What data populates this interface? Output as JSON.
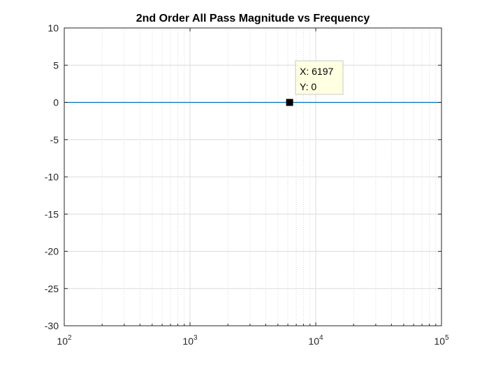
{
  "chart_data": {
    "type": "line",
    "title": "2nd Order All Pass Magnitude vs Frequency",
    "xlabel": "",
    "ylabel": "",
    "x_scale": "log",
    "xlim": [
      100,
      100000
    ],
    "ylim": [
      -30,
      10
    ],
    "grid": true,
    "minor_grid_x": true,
    "x_tick_values": [
      100,
      1000,
      10000,
      100000
    ],
    "x_tick_labels": [
      {
        "base": "10",
        "exp": "2"
      },
      {
        "base": "10",
        "exp": "3"
      },
      {
        "base": "10",
        "exp": "4"
      },
      {
        "base": "10",
        "exp": "5"
      }
    ],
    "y_ticks": [
      10,
      5,
      0,
      -5,
      -10,
      -15,
      -20,
      -25,
      -30
    ],
    "y_tick_labels": [
      "10",
      "5",
      "0",
      "-5",
      "-10",
      "-15",
      "-20",
      "-25",
      "-30"
    ],
    "series": [
      {
        "x": [
          100,
          100000
        ],
        "y": [
          0,
          0
        ],
        "color": "#0072bd"
      }
    ],
    "datatip": {
      "x": 6197,
      "y": 0,
      "x_text": "X: 6197",
      "y_text": "Y: 0"
    }
  }
}
